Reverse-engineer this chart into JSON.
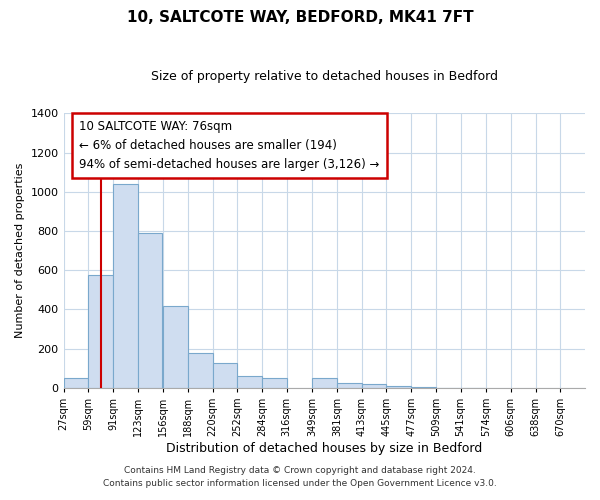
{
  "title": "10, SALTCOTE WAY, BEDFORD, MK41 7FT",
  "subtitle": "Size of property relative to detached houses in Bedford",
  "xlabel": "Distribution of detached houses by size in Bedford",
  "ylabel": "Number of detached properties",
  "bar_color": "#cfddf0",
  "bar_edge_color": "#7aa8cc",
  "vline_color": "#cc0000",
  "vline_x": 76,
  "categories": [
    "27sqm",
    "59sqm",
    "91sqm",
    "123sqm",
    "156sqm",
    "188sqm",
    "220sqm",
    "252sqm",
    "284sqm",
    "316sqm",
    "349sqm",
    "381sqm",
    "413sqm",
    "445sqm",
    "477sqm",
    "509sqm",
    "541sqm",
    "574sqm",
    "606sqm",
    "638sqm",
    "670sqm"
  ],
  "bin_starts": [
    27,
    59,
    91,
    123,
    156,
    188,
    220,
    252,
    284,
    316,
    349,
    381,
    413,
    445,
    477,
    509,
    541,
    574,
    606,
    638,
    670
  ],
  "bin_width": 32,
  "values": [
    50,
    575,
    1040,
    790,
    420,
    180,
    125,
    62,
    52,
    0,
    50,
    27,
    20,
    10,
    5,
    2,
    2,
    0,
    0,
    0,
    0
  ],
  "ylim": [
    0,
    1400
  ],
  "yticks": [
    0,
    200,
    400,
    600,
    800,
    1000,
    1200,
    1400
  ],
  "annotation_title": "10 SALTCOTE WAY: 76sqm",
  "annotation_line1": "← 6% of detached houses are smaller (194)",
  "annotation_line2": "94% of semi-detached houses are larger (3,126) →",
  "footer1": "Contains HM Land Registry data © Crown copyright and database right 2024.",
  "footer2": "Contains public sector information licensed under the Open Government Licence v3.0.",
  "background_color": "#ffffff",
  "grid_color": "#c8d8e8"
}
